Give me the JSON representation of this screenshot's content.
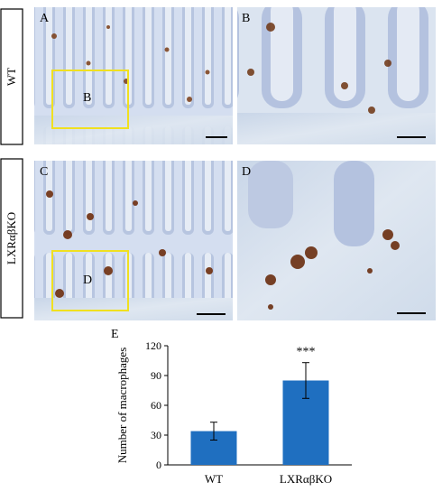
{
  "panels": {
    "row_labels": [
      "WT",
      "LXRαβKO"
    ],
    "labels": [
      "A",
      "B",
      "C",
      "D"
    ],
    "inset_labels": [
      "B",
      "D"
    ]
  },
  "chart_data": {
    "type": "bar",
    "panel_label": "E",
    "ylabel": "Number of macrophages",
    "categories": [
      "WT",
      "LXRαβKO"
    ],
    "values": [
      34,
      85
    ],
    "errors": [
      9,
      18
    ],
    "color": "#1f6fc0",
    "annotations": [
      {
        "category": 1,
        "text": "***"
      }
    ],
    "ylim": [
      0,
      120
    ],
    "yticks": [
      0,
      30,
      60,
      90,
      120
    ]
  }
}
